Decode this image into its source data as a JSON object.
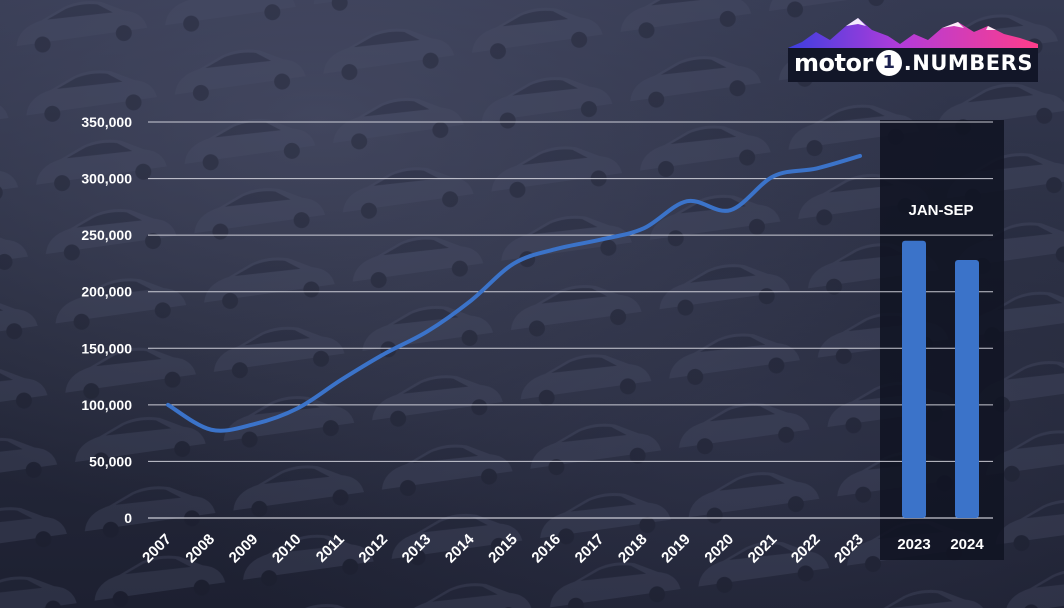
{
  "logo": {
    "word_motor": "motor",
    "badge": "1",
    "word_numbers": ".NUMBERS"
  },
  "colors": {
    "line": "#3b73c9",
    "bar": "#3b73c9",
    "grid": "#e6e6ee",
    "text": "#ffffff",
    "panel": "#101322"
  },
  "chart_data": [
    {
      "type": "line",
      "title": "",
      "xlabel": "",
      "ylabel": "",
      "x": [
        "2007",
        "2008",
        "2009",
        "2010",
        "2011",
        "2012",
        "2013",
        "2014",
        "2015",
        "2016",
        "2017",
        "2018",
        "2019",
        "2020",
        "2021",
        "2022",
        "2023"
      ],
      "values": [
        100000,
        78000,
        83000,
        97000,
        122000,
        145000,
        165000,
        192000,
        225000,
        238000,
        246000,
        256000,
        280000,
        272000,
        302000,
        309000,
        320000
      ],
      "ylim": [
        0,
        350000
      ],
      "yticks": [
        0,
        50000,
        100000,
        150000,
        200000,
        250000,
        300000,
        350000
      ],
      "ytick_labels": [
        "0",
        "50,000",
        "100,000",
        "150,000",
        "200,000",
        "250,000",
        "300,000",
        "350,000"
      ],
      "grid": true
    },
    {
      "type": "bar",
      "title": "JAN-SEP",
      "categories": [
        "2023",
        "2024"
      ],
      "values": [
        245000,
        228000
      ],
      "ylim": [
        0,
        350000
      ]
    }
  ]
}
